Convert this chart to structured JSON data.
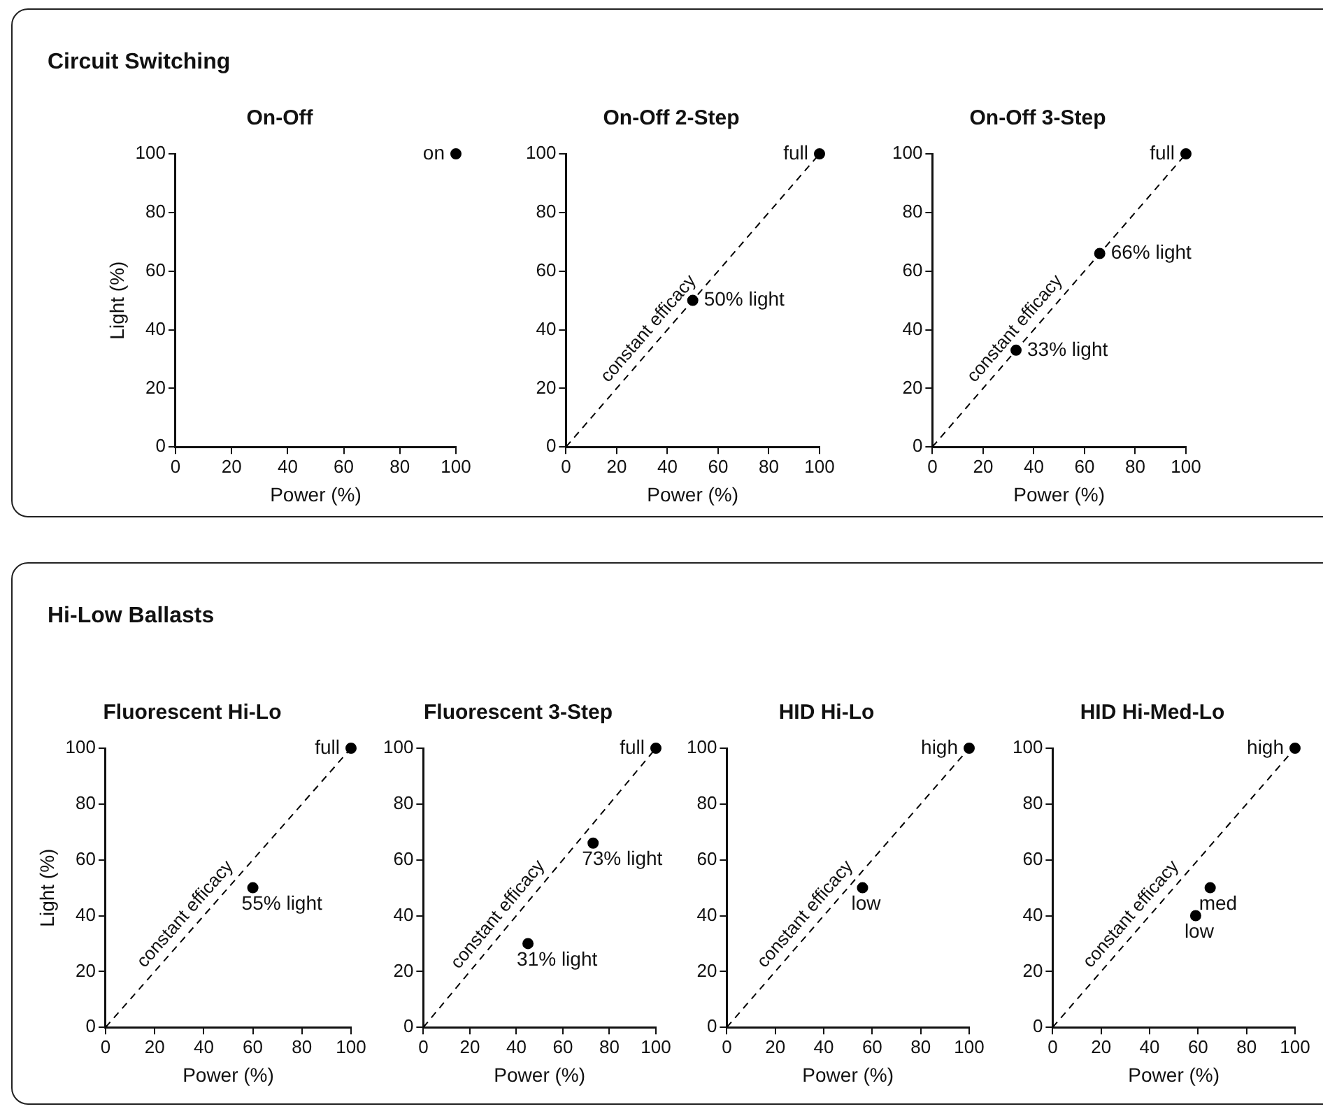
{
  "chart_data": [
    {
      "type": "scatter",
      "title": "On-Off",
      "xlabel": "Power (%)",
      "ylabel": "Light (%)",
      "annotations": [
        "Circuit Switching",
        {
          "text": "on",
          "x": 100,
          "y": 100
        }
      ],
      "xlim": [
        0,
        100
      ],
      "ylim": [
        0,
        100
      ],
      "xticks": [
        0,
        20,
        40,
        60,
        80,
        100
      ],
      "yticks": [
        0,
        20,
        40,
        60,
        80,
        100
      ],
      "marker": "circle",
      "series": [
        {
          "x": [
            100
          ],
          "values": [
            100
          ],
          "color": "#000000"
        }
      ]
    },
    {
      "type": "scatter",
      "title": "On-Off 2-Step",
      "xlabel": "Power (%)",
      "annotations": [
        {
          "text": "full",
          "x": 100,
          "y": 100
        },
        {
          "text": "50% light",
          "x": 50,
          "y": 50
        }
      ],
      "xlim": [
        0,
        100
      ],
      "ylim": [
        0,
        100
      ],
      "xticks": [
        0,
        20,
        40,
        60,
        80,
        100
      ],
      "yticks": [
        0,
        20,
        40,
        60,
        80,
        100
      ],
      "marker": "circle",
      "series": [
        {
          "type": "line",
          "name": "constant efficacy",
          "x": [
            0,
            100
          ],
          "values": [
            0,
            100
          ],
          "color": "#000000",
          "line_style": "dashed",
          "marker": "none"
        },
        {
          "x": [
            100,
            50
          ],
          "values": [
            100,
            50
          ],
          "color": "#000000"
        }
      ]
    },
    {
      "type": "scatter",
      "title": "On-Off 3-Step",
      "xlabel": "Power (%)",
      "annotations": [
        {
          "text": "full",
          "x": 100,
          "y": 100
        },
        {
          "text": "66% light",
          "x": 66,
          "y": 66
        },
        {
          "text": "33% light",
          "x": 33,
          "y": 33
        }
      ],
      "xlim": [
        0,
        100
      ],
      "ylim": [
        0,
        100
      ],
      "xticks": [
        0,
        20,
        40,
        60,
        80,
        100
      ],
      "yticks": [
        0,
        20,
        40,
        60,
        80,
        100
      ],
      "marker": "circle",
      "series": [
        {
          "type": "line",
          "name": "constant efficacy",
          "x": [
            0,
            100
          ],
          "values": [
            0,
            100
          ],
          "color": "#000000",
          "line_style": "dashed",
          "marker": "none"
        },
        {
          "x": [
            100,
            66,
            33
          ],
          "values": [
            100,
            66,
            33
          ],
          "color": "#000000"
        }
      ]
    },
    {
      "type": "scatter",
      "title": "Fluorescent Hi-Lo",
      "xlabel": "Power (%)",
      "ylabel": "Light (%)",
      "annotations": [
        "Hi-Low Ballasts",
        {
          "text": "full",
          "x": 100,
          "y": 100
        },
        {
          "text": "55% light",
          "x": 60,
          "y": 50
        }
      ],
      "xlim": [
        0,
        100
      ],
      "ylim": [
        0,
        100
      ],
      "xticks": [
        0,
        20,
        40,
        60,
        80,
        100
      ],
      "yticks": [
        0,
        20,
        40,
        60,
        80,
        100
      ],
      "marker": "circle",
      "series": [
        {
          "type": "line",
          "name": "constant efficacy",
          "x": [
            0,
            100
          ],
          "values": [
            0,
            100
          ],
          "color": "#000000",
          "line_style": "dashed",
          "marker": "none"
        },
        {
          "x": [
            100,
            60
          ],
          "values": [
            100,
            50
          ],
          "color": "#000000"
        }
      ]
    },
    {
      "type": "scatter",
      "title": "Fluorescent 3-Step",
      "xlabel": "Power (%)",
      "annotations": [
        {
          "text": "full",
          "x": 100,
          "y": 100
        },
        {
          "text": "73% light",
          "x": 73,
          "y": 66
        },
        {
          "text": "31% light",
          "x": 45,
          "y": 30
        }
      ],
      "xlim": [
        0,
        100
      ],
      "ylim": [
        0,
        100
      ],
      "xticks": [
        0,
        20,
        40,
        60,
        80,
        100
      ],
      "yticks": [
        0,
        20,
        40,
        60,
        80,
        100
      ],
      "marker": "circle",
      "series": [
        {
          "type": "line",
          "name": "constant efficacy",
          "x": [
            0,
            100
          ],
          "values": [
            0,
            100
          ],
          "color": "#000000",
          "line_style": "dashed",
          "marker": "none"
        },
        {
          "x": [
            100,
            73,
            45
          ],
          "values": [
            100,
            66,
            30
          ],
          "color": "#000000"
        }
      ]
    },
    {
      "type": "scatter",
      "title": "HID Hi-Lo",
      "xlabel": "Power (%)",
      "annotations": [
        {
          "text": "high",
          "x": 100,
          "y": 100
        },
        {
          "text": "low",
          "x": 56,
          "y": 50
        }
      ],
      "xlim": [
        0,
        100
      ],
      "ylim": [
        0,
        100
      ],
      "xticks": [
        0,
        20,
        40,
        60,
        80,
        100
      ],
      "yticks": [
        0,
        20,
        40,
        60,
        80,
        100
      ],
      "marker": "circle",
      "series": [
        {
          "type": "line",
          "name": "constant efficacy",
          "x": [
            0,
            100
          ],
          "values": [
            0,
            100
          ],
          "color": "#000000",
          "line_style": "dashed",
          "marker": "none"
        },
        {
          "x": [
            100,
            56
          ],
          "values": [
            100,
            50
          ],
          "color": "#000000"
        }
      ]
    },
    {
      "type": "scatter",
      "title": "HID Hi-Med-Lo",
      "xlabel": "Power (%)",
      "annotations": [
        {
          "text": "high",
          "x": 100,
          "y": 100
        },
        {
          "text": "med",
          "x": 65,
          "y": 50
        },
        {
          "text": "low",
          "x": 59,
          "y": 40
        }
      ],
      "xlim": [
        0,
        100
      ],
      "ylim": [
        0,
        100
      ],
      "xticks": [
        0,
        20,
        40,
        60,
        80,
        100
      ],
      "yticks": [
        0,
        20,
        40,
        60,
        80,
        100
      ],
      "marker": "circle",
      "series": [
        {
          "type": "line",
          "name": "constant efficacy",
          "x": [
            0,
            100
          ],
          "values": [
            0,
            100
          ],
          "color": "#000000",
          "line_style": "dashed",
          "marker": "none"
        },
        {
          "x": [
            100,
            65,
            59
          ],
          "values": [
            100,
            50,
            40
          ],
          "color": "#000000"
        }
      ]
    }
  ]
}
